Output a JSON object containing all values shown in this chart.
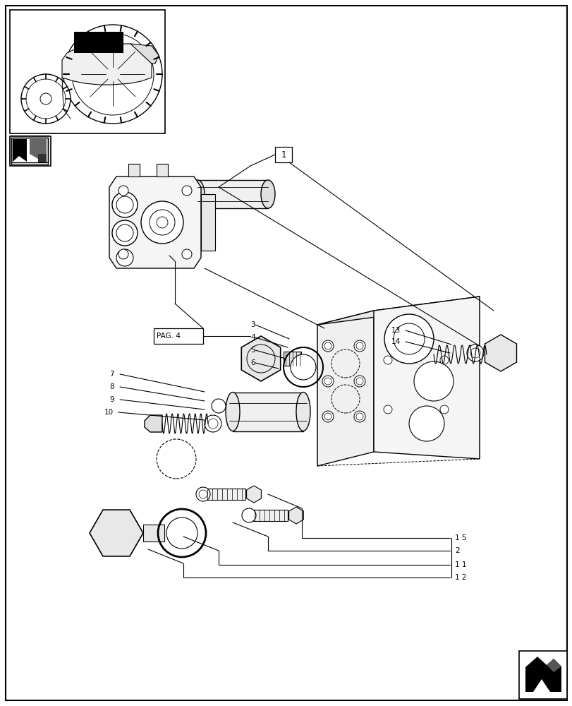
{
  "fig_width": 8.12,
  "fig_height": 10.0,
  "dpi": 100,
  "bg": "#ffffff",
  "lc": "#000000",
  "lw": 0.8,
  "fontsize": 7.5,
  "border": [
    8,
    8,
    804,
    992
  ]
}
